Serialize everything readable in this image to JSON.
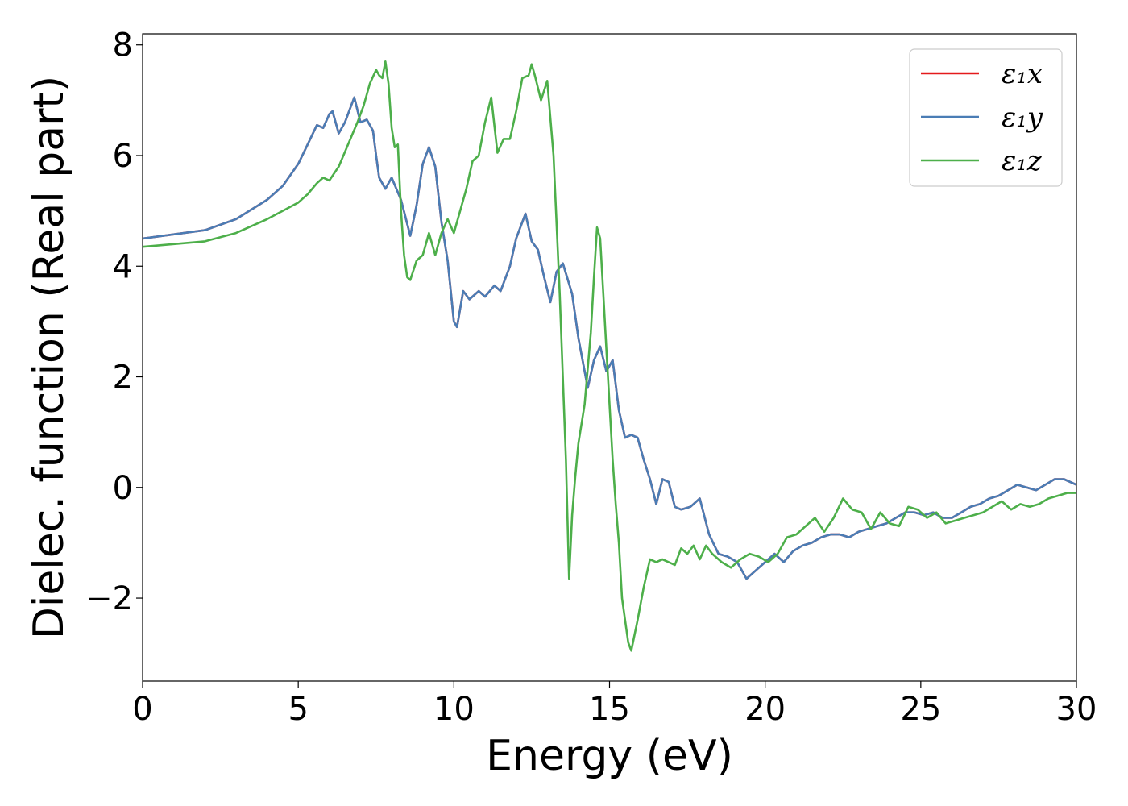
{
  "chart_data": {
    "type": "line",
    "xlabel": "Energy (eV)",
    "ylabel": "Dielec. function (Real part)",
    "xlim": [
      0,
      30
    ],
    "ylim": [
      -3.5,
      8.2
    ],
    "xticks": [
      0,
      5,
      10,
      15,
      20,
      25,
      30
    ],
    "xtick_labels": [
      "0",
      "5",
      "10",
      "15",
      "20",
      "25",
      "30"
    ],
    "yticks": [
      -2,
      0,
      2,
      4,
      6,
      8
    ],
    "ytick_labels": [
      "−2",
      "0",
      "2",
      "4",
      "6",
      "8"
    ],
    "grid": false,
    "legend_position": "top-right",
    "series": [
      {
        "name": "ε₁x",
        "color": "#e41a1c",
        "x": [
          0,
          2,
          3,
          4,
          4.5,
          5,
          5.3,
          5.6,
          5.8,
          6.0,
          6.1,
          6.3,
          6.5,
          6.7,
          6.8,
          7.0,
          7.2,
          7.4,
          7.5,
          7.6,
          7.8,
          8.0,
          8.3,
          8.6,
          8.8,
          9.0,
          9.2,
          9.4,
          9.6,
          9.8,
          10.0,
          10.1,
          10.3,
          10.5,
          10.8,
          11.0,
          11.3,
          11.5,
          11.8,
          12.0,
          12.3,
          12.5,
          12.7,
          12.9,
          13.1,
          13.3,
          13.5,
          13.8,
          14.0,
          14.3,
          14.5,
          14.7,
          14.9,
          15.1,
          15.3,
          15.5,
          15.7,
          15.9,
          16.1,
          16.3,
          16.5,
          16.7,
          16.9,
          17.1,
          17.3,
          17.6,
          17.9,
          18.2,
          18.5,
          18.8,
          19.1,
          19.4,
          19.7,
          20.0,
          20.3,
          20.6,
          20.9,
          21.2,
          21.5,
          21.8,
          22.1,
          22.4,
          22.7,
          23.0,
          23.3,
          23.6,
          23.9,
          24.2,
          24.5,
          24.8,
          25.1,
          25.4,
          25.7,
          26.0,
          26.3,
          26.6,
          26.9,
          27.2,
          27.5,
          27.8,
          28.1,
          28.4,
          28.7,
          29.0,
          29.3,
          29.6,
          30.0
        ],
        "y": [
          4.5,
          4.65,
          4.85,
          5.2,
          5.45,
          5.85,
          6.2,
          6.55,
          6.5,
          6.75,
          6.8,
          6.4,
          6.6,
          6.9,
          7.05,
          6.6,
          6.65,
          6.45,
          6.0,
          5.6,
          5.4,
          5.6,
          5.2,
          4.55,
          5.1,
          5.85,
          6.15,
          5.8,
          4.8,
          4.1,
          3.0,
          2.9,
          3.55,
          3.4,
          3.55,
          3.45,
          3.65,
          3.55,
          4.0,
          4.5,
          4.95,
          4.45,
          4.3,
          3.8,
          3.35,
          3.9,
          4.05,
          3.5,
          2.7,
          1.8,
          2.3,
          2.55,
          2.1,
          2.3,
          1.4,
          0.9,
          0.95,
          0.9,
          0.5,
          0.15,
          -0.3,
          0.15,
          0.1,
          -0.35,
          -0.4,
          -0.35,
          -0.2,
          -0.85,
          -1.2,
          -1.25,
          -1.35,
          -1.65,
          -1.5,
          -1.35,
          -1.2,
          -1.35,
          -1.15,
          -1.05,
          -1.0,
          -0.9,
          -0.85,
          -0.85,
          -0.9,
          -0.8,
          -0.75,
          -0.7,
          -0.65,
          -0.55,
          -0.45,
          -0.45,
          -0.5,
          -0.45,
          -0.55,
          -0.55,
          -0.45,
          -0.35,
          -0.3,
          -0.2,
          -0.15,
          -0.05,
          0.05,
          0.0,
          -0.05,
          0.05,
          0.15,
          0.15,
          0.05
        ]
      },
      {
        "name": "ε₁y",
        "color": "#4a7db5",
        "x": [
          0,
          2,
          3,
          4,
          4.5,
          5,
          5.3,
          5.6,
          5.8,
          6.0,
          6.1,
          6.3,
          6.5,
          6.7,
          6.8,
          7.0,
          7.2,
          7.4,
          7.5,
          7.6,
          7.8,
          8.0,
          8.3,
          8.6,
          8.8,
          9.0,
          9.2,
          9.4,
          9.6,
          9.8,
          10.0,
          10.1,
          10.3,
          10.5,
          10.8,
          11.0,
          11.3,
          11.5,
          11.8,
          12.0,
          12.3,
          12.5,
          12.7,
          12.9,
          13.1,
          13.3,
          13.5,
          13.8,
          14.0,
          14.3,
          14.5,
          14.7,
          14.9,
          15.1,
          15.3,
          15.5,
          15.7,
          15.9,
          16.1,
          16.3,
          16.5,
          16.7,
          16.9,
          17.1,
          17.3,
          17.6,
          17.9,
          18.2,
          18.5,
          18.8,
          19.1,
          19.4,
          19.7,
          20.0,
          20.3,
          20.6,
          20.9,
          21.2,
          21.5,
          21.8,
          22.1,
          22.4,
          22.7,
          23.0,
          23.3,
          23.6,
          23.9,
          24.2,
          24.5,
          24.8,
          25.1,
          25.4,
          25.7,
          26.0,
          26.3,
          26.6,
          26.9,
          27.2,
          27.5,
          27.8,
          28.1,
          28.4,
          28.7,
          29.0,
          29.3,
          29.6,
          30.0
        ],
        "y": [
          4.5,
          4.65,
          4.85,
          5.2,
          5.45,
          5.85,
          6.2,
          6.55,
          6.5,
          6.75,
          6.8,
          6.4,
          6.6,
          6.9,
          7.05,
          6.6,
          6.65,
          6.45,
          6.0,
          5.6,
          5.4,
          5.6,
          5.2,
          4.55,
          5.1,
          5.85,
          6.15,
          5.8,
          4.8,
          4.1,
          3.0,
          2.9,
          3.55,
          3.4,
          3.55,
          3.45,
          3.65,
          3.55,
          4.0,
          4.5,
          4.95,
          4.45,
          4.3,
          3.8,
          3.35,
          3.9,
          4.05,
          3.5,
          2.7,
          1.8,
          2.3,
          2.55,
          2.1,
          2.3,
          1.4,
          0.9,
          0.95,
          0.9,
          0.5,
          0.15,
          -0.3,
          0.15,
          0.1,
          -0.35,
          -0.4,
          -0.35,
          -0.2,
          -0.85,
          -1.2,
          -1.25,
          -1.35,
          -1.65,
          -1.5,
          -1.35,
          -1.2,
          -1.35,
          -1.15,
          -1.05,
          -1.0,
          -0.9,
          -0.85,
          -0.85,
          -0.9,
          -0.8,
          -0.75,
          -0.7,
          -0.65,
          -0.55,
          -0.45,
          -0.45,
          -0.5,
          -0.45,
          -0.55,
          -0.55,
          -0.45,
          -0.35,
          -0.3,
          -0.2,
          -0.15,
          -0.05,
          0.05,
          0.0,
          -0.05,
          0.05,
          0.15,
          0.15,
          0.05
        ]
      },
      {
        "name": "ε₁z",
        "color": "#4daf4a",
        "x": [
          0,
          2,
          3,
          4,
          4.5,
          5,
          5.3,
          5.6,
          5.8,
          6.0,
          6.3,
          6.6,
          6.9,
          7.1,
          7.3,
          7.5,
          7.6,
          7.7,
          7.8,
          7.9,
          8.0,
          8.1,
          8.2,
          8.3,
          8.4,
          8.5,
          8.6,
          8.8,
          9.0,
          9.2,
          9.4,
          9.6,
          9.8,
          10.0,
          10.2,
          10.4,
          10.6,
          10.8,
          11.0,
          11.2,
          11.4,
          11.6,
          11.8,
          12.0,
          12.2,
          12.4,
          12.5,
          12.6,
          12.8,
          13.0,
          13.2,
          13.4,
          13.6,
          13.7,
          13.8,
          13.9,
          14.0,
          14.2,
          14.4,
          14.5,
          14.6,
          14.7,
          14.8,
          14.9,
          15.0,
          15.1,
          15.2,
          15.3,
          15.4,
          15.6,
          15.7,
          15.9,
          16.1,
          16.3,
          16.5,
          16.7,
          16.9,
          17.1,
          17.3,
          17.5,
          17.7,
          17.9,
          18.1,
          18.3,
          18.6,
          18.9,
          19.2,
          19.5,
          19.8,
          20.1,
          20.4,
          20.7,
          21.0,
          21.3,
          21.6,
          21.9,
          22.2,
          22.5,
          22.8,
          23.1,
          23.4,
          23.7,
          24.0,
          24.3,
          24.6,
          24.9,
          25.2,
          25.5,
          25.8,
          26.1,
          26.4,
          26.7,
          27.0,
          27.3,
          27.6,
          27.9,
          28.2,
          28.5,
          28.8,
          29.1,
          29.4,
          29.7,
          30.0
        ],
        "y": [
          4.35,
          4.45,
          4.6,
          4.85,
          5.0,
          5.15,
          5.3,
          5.5,
          5.6,
          5.55,
          5.8,
          6.2,
          6.6,
          6.9,
          7.3,
          7.55,
          7.45,
          7.4,
          7.7,
          7.3,
          6.5,
          6.15,
          6.2,
          5.0,
          4.2,
          3.8,
          3.75,
          4.1,
          4.2,
          4.6,
          4.2,
          4.6,
          4.85,
          4.6,
          5.0,
          5.4,
          5.9,
          6.0,
          6.6,
          7.05,
          6.05,
          6.3,
          6.3,
          6.8,
          7.4,
          7.45,
          7.65,
          7.45,
          7.0,
          7.35,
          6.0,
          3.5,
          0.5,
          -1.65,
          -0.5,
          0.2,
          0.8,
          1.5,
          2.8,
          3.8,
          4.7,
          4.5,
          3.5,
          2.5,
          1.5,
          0.5,
          -0.3,
          -1.0,
          -2.0,
          -2.8,
          -2.95,
          -2.4,
          -1.8,
          -1.3,
          -1.35,
          -1.3,
          -1.35,
          -1.4,
          -1.1,
          -1.2,
          -1.05,
          -1.3,
          -1.05,
          -1.2,
          -1.35,
          -1.45,
          -1.3,
          -1.2,
          -1.25,
          -1.35,
          -1.2,
          -0.9,
          -0.85,
          -0.7,
          -0.55,
          -0.8,
          -0.55,
          -0.2,
          -0.4,
          -0.45,
          -0.75,
          -0.45,
          -0.65,
          -0.7,
          -0.35,
          -0.4,
          -0.55,
          -0.45,
          -0.65,
          -0.6,
          -0.55,
          -0.5,
          -0.45,
          -0.35,
          -0.25,
          -0.4,
          -0.3,
          -0.35,
          -0.3,
          -0.2,
          -0.15,
          -0.1,
          -0.1
        ]
      }
    ]
  },
  "colors": {
    "axes": "#000000",
    "legend_border": "#cccccc",
    "background": "#ffffff"
  }
}
